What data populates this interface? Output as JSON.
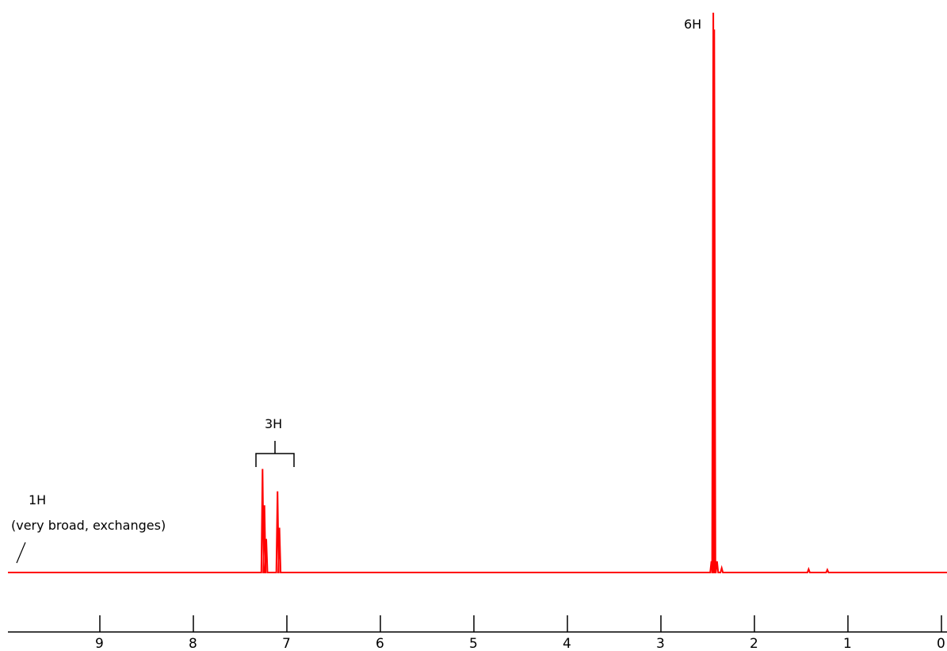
{
  "chart_data": {
    "type": "line",
    "title": "",
    "xlabel": "",
    "ylabel": "",
    "xlim": [
      10,
      0
    ],
    "x_reversed": true,
    "grid": false,
    "x_ticks": [
      9,
      8,
      7,
      6,
      5,
      4,
      3,
      2,
      1,
      0
    ],
    "x_tick_labels": [
      "9",
      "8",
      "7",
      "6",
      "5",
      "4",
      "3",
      "2",
      "1",
      "0"
    ],
    "series": [
      {
        "color": "#ff0000",
        "peaks": [
          {
            "ppm": 7.26,
            "height": 0.185
          },
          {
            "ppm": 7.24,
            "height": 0.12
          },
          {
            "ppm": 7.22,
            "height": 0.06
          },
          {
            "ppm": 7.1,
            "height": 0.145
          },
          {
            "ppm": 7.08,
            "height": 0.08
          },
          {
            "ppm": 2.44,
            "height": 1.0
          },
          {
            "ppm": 2.43,
            "height": 0.97
          },
          {
            "ppm": 2.46,
            "height": 0.02
          },
          {
            "ppm": 2.4,
            "height": 0.02
          },
          {
            "ppm": 2.35,
            "height": 0.008
          },
          {
            "ppm": 1.42,
            "height": 0.006
          },
          {
            "ppm": 1.22,
            "height": 0.005
          }
        ]
      }
    ],
    "annotations": [
      {
        "id": "a-1h",
        "line1": "1H",
        "line2": "(very broad, exchanges)",
        "ppm": 9.9
      },
      {
        "id": "a-3h",
        "label": "3H",
        "ppm_from": 7.37,
        "ppm_to": 6.97
      },
      {
        "id": "a-6h",
        "label": "6H",
        "ppm": 2.44
      }
    ]
  }
}
